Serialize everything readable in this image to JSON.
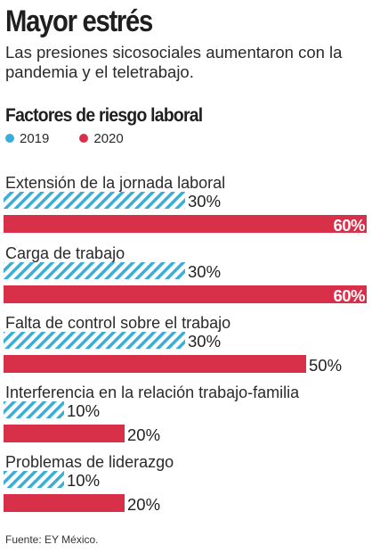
{
  "header": {
    "title": "Mayor estrés",
    "subtitle": "Las presiones sicosociales aumentaron con la pandemia y el teletrabajo.",
    "chart_heading": "Factores de riesgo laboral"
  },
  "source": "Fuente: EY México.",
  "colors": {
    "series_2019": "#3aaed8",
    "series_2020": "#d9304a"
  },
  "chart_data": {
    "type": "bar",
    "orientation": "horizontal",
    "unit": "%",
    "categories": [
      "Extensión de la jornada laboral",
      "Carga de trabajo",
      "Falta de control sobre el trabajo",
      "Interferencia en la relación trabajo-familia",
      "Problemas de liderazgo"
    ],
    "series": [
      {
        "name": "2019",
        "values": [
          30,
          30,
          30,
          10,
          10
        ],
        "labels": [
          "30%",
          "30%",
          "30%",
          "10%",
          "10%"
        ],
        "pattern": "diagonal-stripes"
      },
      {
        "name": "2020",
        "values": [
          60,
          60,
          50,
          20,
          20
        ],
        "labels": [
          "60%",
          "60%",
          "50%",
          "20%",
          "20%"
        ],
        "pattern": "solid"
      }
    ],
    "value_labels_inside_bar": [
      60
    ],
    "legend_position": "top-left",
    "xlim": [
      0,
      60
    ],
    "grid": false
  }
}
